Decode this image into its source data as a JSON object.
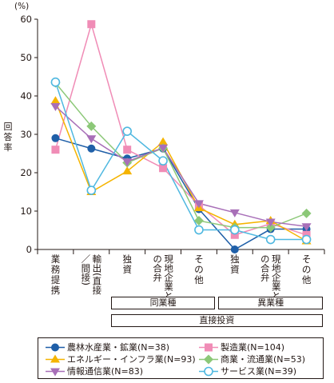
{
  "chart_data": {
    "type": "line",
    "unit": "(%)",
    "ylabel": "回答率",
    "ylim": [
      0,
      60
    ],
    "yticks": [
      0,
      10,
      20,
      30,
      40,
      50,
      60
    ],
    "categories": [
      "業務提携",
      "輸出(直接／間接)",
      "独資",
      "現地企業との合弁",
      "その他",
      "独資",
      "現地企業との合弁",
      "その他"
    ],
    "groups": [
      {
        "label": "同業種",
        "from": 2,
        "to": 4
      },
      {
        "label": "異業種",
        "from": 5,
        "to": 7
      },
      {
        "label": "直接投資",
        "from": 2,
        "to": 7
      }
    ],
    "series": [
      {
        "name": "農林水産業・鉱業(N=38)",
        "color": "#1f5fa8",
        "marker": "circle",
        "values": [
          29,
          26.3,
          23.7,
          26.3,
          10.5,
          0,
          5.3,
          5.3
        ]
      },
      {
        "name": "製造業(N=104)",
        "color": "#f08cb6",
        "marker": "square",
        "values": [
          26,
          58.7,
          26,
          21.2,
          11.5,
          3.8,
          6.7,
          3.8
        ]
      },
      {
        "name": "エネルギー・インフラ業(N=93)",
        "color": "#f5b400",
        "marker": "triangle",
        "values": [
          38.7,
          15,
          20.4,
          28,
          10.8,
          6.5,
          7.5,
          2.2
        ]
      },
      {
        "name": "商業・流通業(N=53)",
        "color": "#8cc878",
        "marker": "diamond",
        "values": [
          43.4,
          32.1,
          22.6,
          26.4,
          7.5,
          5.7,
          5.7,
          9.4
        ]
      },
      {
        "name": "情報通信業(N=83)",
        "color": "#a86fb8",
        "marker": "triangle-down",
        "values": [
          37.3,
          28.9,
          22.9,
          26.5,
          12,
          9.6,
          7.2,
          6
        ]
      },
      {
        "name": "サービス業(N=39)",
        "color": "#4fb8e0",
        "marker": "circle-open",
        "values": [
          43.6,
          15.4,
          30.8,
          23.1,
          5.1,
          5.1,
          2.6,
          2.6
        ]
      }
    ]
  }
}
